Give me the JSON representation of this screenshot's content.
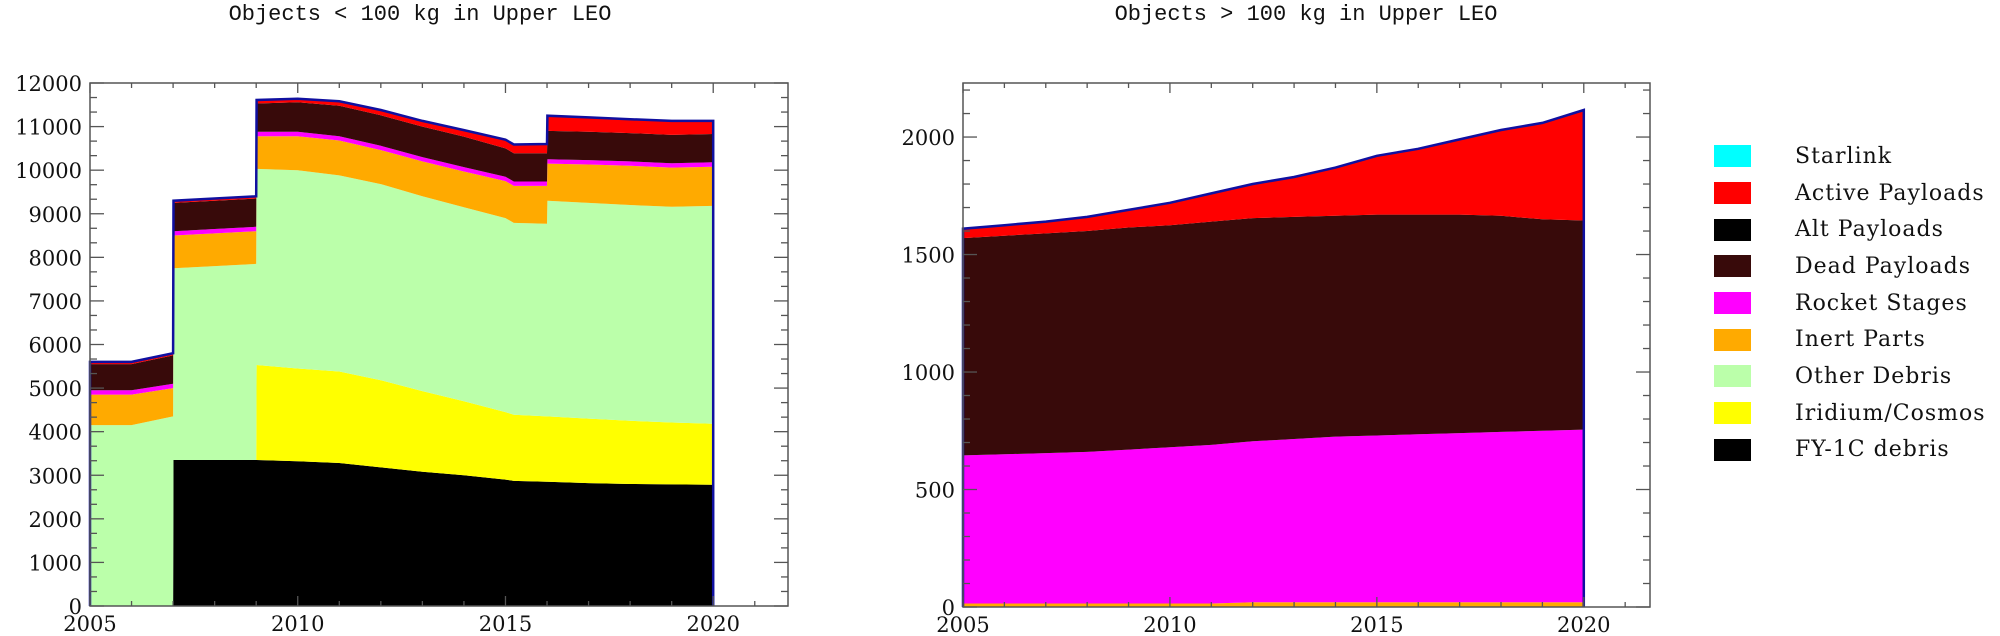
{
  "chart_data": [
    {
      "type": "area",
      "stacked": true,
      "title": "Objects < 100 kg in Upper LEO",
      "xlabel": "",
      "ylabel": "",
      "xlim": [
        2005,
        2021.8
      ],
      "ylim": [
        0,
        12000
      ],
      "x_ticks": [
        2005,
        2010,
        2015,
        2020
      ],
      "y_ticks": [
        0,
        1000,
        2000,
        3000,
        4000,
        5000,
        6000,
        7000,
        8000,
        9000,
        10000,
        11000,
        12000
      ],
      "grid": false,
      "x": [
        2005,
        2006,
        2007,
        2007.01,
        2008,
        2009,
        2009.01,
        2010,
        2011,
        2012,
        2013,
        2014,
        2015,
        2015.2,
        2016,
        2016.01,
        2017,
        2018,
        2019,
        2020
      ],
      "series": [
        {
          "name": "FY-1C debris",
          "color": "#000000",
          "values": [
            0,
            0,
            0,
            3350,
            3350,
            3350,
            3350,
            3320,
            3280,
            3180,
            3080,
            3000,
            2900,
            2870,
            2850,
            2850,
            2820,
            2800,
            2790,
            2780
          ]
        },
        {
          "name": "Iridium/Cosmos",
          "color": "#ffff00",
          "values": [
            0,
            0,
            0,
            0,
            0,
            0,
            2180,
            2130,
            2100,
            2000,
            1850,
            1700,
            1550,
            1520,
            1500,
            1500,
            1480,
            1450,
            1420,
            1400
          ]
        },
        {
          "name": "Other Debris",
          "color": "#bbffaa",
          "values": [
            4150,
            4150,
            4350,
            4400,
            4450,
            4500,
            4500,
            4550,
            4500,
            4500,
            4470,
            4450,
            4450,
            4400,
            4420,
            4950,
            4950,
            4950,
            4950,
            5000
          ]
        },
        {
          "name": "Inert Parts",
          "color": "#ffaa00",
          "values": [
            700,
            700,
            650,
            750,
            750,
            750,
            750,
            780,
            800,
            780,
            800,
            820,
            850,
            850,
            870,
            850,
            880,
            900,
            900,
            900
          ]
        },
        {
          "name": "Rocket Stages",
          "color": "#ff00ff",
          "values": [
            100,
            100,
            100,
            100,
            100,
            100,
            100,
            100,
            100,
            100,
            100,
            100,
            100,
            100,
            100,
            100,
            100,
            100,
            100,
            100
          ]
        },
        {
          "name": "Dead Payloads",
          "color": "#380a0a",
          "values": [
            600,
            600,
            650,
            650,
            650,
            650,
            650,
            680,
            700,
            700,
            700,
            700,
            650,
            650,
            650,
            650,
            650,
            650,
            650,
            650
          ]
        },
        {
          "name": "Alt Payloads",
          "color": "#000000",
          "values": [
            0,
            0,
            0,
            0,
            0,
            0,
            0,
            0,
            0,
            0,
            0,
            0,
            0,
            0,
            0,
            0,
            0,
            0,
            0,
            0
          ]
        },
        {
          "name": "Active Payloads",
          "color": "#ff0000",
          "values": [
            50,
            50,
            50,
            50,
            50,
            50,
            80,
            80,
            100,
            120,
            130,
            150,
            200,
            200,
            210,
            350,
            330,
            320,
            320,
            300
          ]
        },
        {
          "name": "Starlink",
          "color": "#00ffff",
          "values": [
            0,
            0,
            0,
            0,
            0,
            0,
            0,
            0,
            0,
            0,
            0,
            0,
            0,
            0,
            0,
            0,
            0,
            0,
            0,
            0
          ]
        }
      ],
      "totals_approx": [
        5500,
        5550,
        5700,
        9100,
        9200,
        9300,
        11450,
        11550,
        11550,
        11300,
        11100,
        10900,
        10700,
        10600,
        10600,
        11100,
        11000,
        11000,
        11000,
        11100
      ]
    },
    {
      "type": "area",
      "stacked": true,
      "title": "Objects > 100 kg in Upper LEO",
      "xlabel": "",
      "ylabel": "",
      "xlim": [
        2005,
        2021.6
      ],
      "ylim": [
        0,
        2230
      ],
      "x_ticks": [
        2005,
        2010,
        2015,
        2020
      ],
      "y_ticks": [
        0,
        500,
        1000,
        1500,
        2000
      ],
      "grid": false,
      "x": [
        2005,
        2006,
        2007,
        2008,
        2009,
        2010,
        2011,
        2012,
        2013,
        2014,
        2015,
        2016,
        2017,
        2018,
        2019,
        2020
      ],
      "series": [
        {
          "name": "FY-1C debris",
          "color": "#000000",
          "values": [
            0,
            0,
            0,
            0,
            0,
            0,
            0,
            0,
            0,
            0,
            0,
            0,
            0,
            0,
            0,
            0
          ]
        },
        {
          "name": "Iridium/Cosmos",
          "color": "#ffff00",
          "values": [
            0,
            0,
            0,
            0,
            0,
            0,
            0,
            0,
            0,
            0,
            0,
            0,
            0,
            0,
            0,
            0
          ]
        },
        {
          "name": "Other Debris",
          "color": "#bbffaa",
          "values": [
            0,
            0,
            0,
            0,
            0,
            0,
            0,
            0,
            0,
            0,
            0,
            0,
            0,
            0,
            0,
            0
          ]
        },
        {
          "name": "Inert Parts",
          "color": "#ffaa00",
          "values": [
            15,
            15,
            15,
            15,
            15,
            15,
            15,
            20,
            20,
            20,
            20,
            20,
            20,
            20,
            20,
            20
          ]
        },
        {
          "name": "Rocket Stages",
          "color": "#ff00ff",
          "values": [
            630,
            635,
            640,
            645,
            655,
            665,
            675,
            685,
            695,
            705,
            710,
            715,
            720,
            725,
            730,
            735
          ]
        },
        {
          "name": "Dead Payloads",
          "color": "#380a0a",
          "values": [
            925,
            930,
            935,
            940,
            945,
            945,
            950,
            950,
            945,
            940,
            940,
            935,
            930,
            920,
            900,
            890
          ]
        },
        {
          "name": "Alt Payloads",
          "color": "#000000",
          "values": [
            0,
            0,
            0,
            0,
            0,
            0,
            0,
            0,
            0,
            0,
            0,
            0,
            0,
            0,
            0,
            0
          ]
        },
        {
          "name": "Active Payloads",
          "color": "#ff0000",
          "values": [
            40,
            45,
            50,
            60,
            75,
            95,
            120,
            145,
            170,
            205,
            250,
            280,
            320,
            365,
            410,
            470
          ]
        },
        {
          "name": "Starlink",
          "color": "#00ffff",
          "values": [
            0,
            0,
            0,
            0,
            0,
            0,
            0,
            0,
            0,
            0,
            0,
            0,
            0,
            0,
            0,
            0
          ]
        }
      ],
      "totals_approx": [
        1610,
        1625,
        1640,
        1660,
        1690,
        1720,
        1760,
        1800,
        1830,
        1870,
        1920,
        1950,
        1990,
        2030,
        2060,
        2115
      ]
    }
  ],
  "left": {
    "title": "Objects < 100 kg in Upper LEO",
    "y_labels": [
      "0",
      "1000",
      "2000",
      "3000",
      "4000",
      "5000",
      "6000",
      "7000",
      "8000",
      "9000",
      "10000",
      "11000",
      "12000"
    ],
    "x_labels": [
      "2005",
      "2010",
      "2015",
      "2020"
    ]
  },
  "right": {
    "title": "Objects > 100 kg in Upper LEO",
    "y_labels": [
      "0",
      "500",
      "1000",
      "1500",
      "2000"
    ],
    "x_labels": [
      "2005",
      "2010",
      "2015",
      "2020"
    ]
  },
  "legend": {
    "items": [
      {
        "label": "Starlink",
        "color": "#00ffff"
      },
      {
        "label": "Active Payloads",
        "color": "#ff0000"
      },
      {
        "label": "Alt Payloads",
        "color": "#000000"
      },
      {
        "label": "Dead Payloads",
        "color": "#380a0a"
      },
      {
        "label": "Rocket Stages",
        "color": "#ff00ff"
      },
      {
        "label": "Inert Parts",
        "color": "#ffaa00"
      },
      {
        "label": "Other Debris",
        "color": "#bbffaa"
      },
      {
        "label": "Iridium/Cosmos",
        "color": "#ffff00"
      },
      {
        "label": "FY-1C debris",
        "color": "#000000"
      }
    ]
  },
  "colors": {
    "outline": "#1010a0",
    "axis": "#555555"
  }
}
